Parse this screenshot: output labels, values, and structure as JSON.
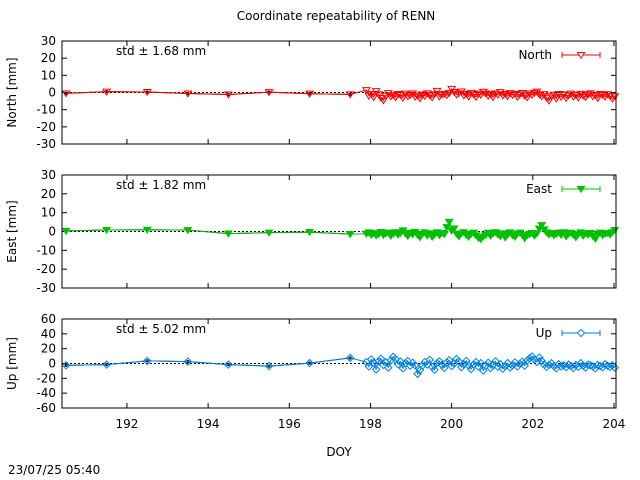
{
  "figure": {
    "title": "Coordinate repeatability of RENN",
    "timestamp": "23/07/25 05:40"
  },
  "chart_data": [
    {
      "type": "line",
      "panel": "north",
      "title": "Coordinate repeatability of RENN",
      "ylabel": "North [mm]",
      "xlabel": "",
      "xlim": [
        190.4,
        204.05
      ],
      "ylim": [
        -30,
        30
      ],
      "yticks": [
        "30",
        "20",
        "10",
        "0",
        "-10",
        "-20",
        "-30"
      ],
      "std_text": "std ± 1.68 mm",
      "color": "#ff0000",
      "marker": "triangle-down-open",
      "legend": "top-right",
      "series": [
        {
          "name": "North",
          "x": [
            190.5,
            191.5,
            192.5,
            193.5,
            194.5,
            195.5,
            196.5,
            197.5,
            197.9,
            197.96,
            198.02,
            198.08,
            198.14,
            198.2,
            198.26,
            198.32,
            198.38,
            198.44,
            198.5,
            198.56,
            198.62,
            198.68,
            198.74,
            198.8,
            198.86,
            198.92,
            198.98,
            199.04,
            199.1,
            199.16,
            199.22,
            199.28,
            199.34,
            199.4,
            199.46,
            199.52,
            199.58,
            199.64,
            199.7,
            199.76,
            199.82,
            199.88,
            199.94,
            200.0,
            200.06,
            200.12,
            200.18,
            200.24,
            200.3,
            200.36,
            200.42,
            200.48,
            200.54,
            200.6,
            200.66,
            200.72,
            200.78,
            200.84,
            200.9,
            200.96,
            201.02,
            201.08,
            201.14,
            201.2,
            201.26,
            201.32,
            201.38,
            201.44,
            201.5,
            201.56,
            201.62,
            201.68,
            201.74,
            201.8,
            201.86,
            201.92,
            201.98,
            202.04,
            202.1,
            202.16,
            202.22,
            202.28,
            202.34,
            202.4,
            202.46,
            202.52,
            202.58,
            202.64,
            202.7,
            202.76,
            202.82,
            202.88,
            202.94,
            203.0,
            203.06,
            203.12,
            203.18,
            203.24,
            203.3,
            203.36,
            203.42,
            203.48,
            203.54,
            203.6,
            203.66,
            203.72,
            203.78,
            203.84,
            203.9,
            203.96,
            204.02
          ],
          "y": [
            -0.5,
            0.5,
            0.3,
            -0.6,
            -1.2,
            0.2,
            -0.7,
            -1.1,
            1.4,
            -1.9,
            -0.8,
            -2.7,
            0.8,
            -1.1,
            -3.2,
            -4.6,
            -1.9,
            -0.4,
            -2.3,
            -1.6,
            -2.8,
            -0.9,
            -1.5,
            -3.1,
            -0.7,
            -2.2,
            -1.4,
            -0.6,
            -2.5,
            -1.8,
            -3.4,
            -1.2,
            -2.1,
            -0.5,
            -1.7,
            -2.9,
            -1.0,
            0.9,
            -2.4,
            -1.3,
            -0.8,
            -1.6,
            -0.4,
            2.1,
            0.3,
            -1.2,
            -0.5,
            0.6,
            -1.8,
            -0.9,
            -2.3,
            -0.2,
            -1.1,
            -2.6,
            -0.7,
            -1.4,
            0.4,
            -0.6,
            -1.9,
            -1.0,
            -2.8,
            -0.5,
            -1.3,
            0.2,
            -1.7,
            -0.9,
            -2.2,
            -0.4,
            -1.5,
            -0.8,
            -2.6,
            -1.1,
            -0.3,
            -1.9,
            -2.9,
            -0.6,
            -1.4,
            -0.2,
            0.5,
            -1.2,
            -2.3,
            -1.0,
            -3.1,
            -4.8,
            -2.2,
            -1.3,
            -3.5,
            -0.9,
            -2.6,
            -1.1,
            -3.2,
            -1.8,
            -0.7,
            -2.4,
            -1.5,
            -3.0,
            -0.8,
            -1.9,
            -2.7,
            -1.2,
            -0.5,
            -2.2,
            -1.6,
            -3.3,
            -0.9,
            -1.4,
            -2.5,
            -1.0,
            -2.1,
            -3.6,
            -2.3
          ]
        }
      ]
    },
    {
      "type": "line",
      "panel": "east",
      "ylabel": "East [mm]",
      "xlabel": "",
      "xlim": [
        190.4,
        204.05
      ],
      "ylim": [
        -30,
        30
      ],
      "yticks": [
        "30",
        "20",
        "10",
        "0",
        "-10",
        "-20",
        "-30"
      ],
      "std_text": "std ± 1.82 mm",
      "color": "#00c000",
      "marker": "triangle-down-filled",
      "legend": "top-right",
      "series": [
        {
          "name": "East",
          "x": [
            190.5,
            191.5,
            192.5,
            193.5,
            194.5,
            195.5,
            196.5,
            197.5,
            197.9,
            197.96,
            198.02,
            198.08,
            198.14,
            198.2,
            198.26,
            198.32,
            198.38,
            198.44,
            198.5,
            198.56,
            198.62,
            198.68,
            198.74,
            198.8,
            198.86,
            198.92,
            198.98,
            199.04,
            199.1,
            199.16,
            199.22,
            199.28,
            199.34,
            199.4,
            199.46,
            199.52,
            199.58,
            199.64,
            199.7,
            199.76,
            199.82,
            199.88,
            199.94,
            200.0,
            200.06,
            200.12,
            200.18,
            200.24,
            200.3,
            200.36,
            200.42,
            200.48,
            200.54,
            200.6,
            200.66,
            200.72,
            200.78,
            200.84,
            200.9,
            200.96,
            201.02,
            201.08,
            201.14,
            201.2,
            201.26,
            201.32,
            201.38,
            201.44,
            201.5,
            201.56,
            201.62,
            201.68,
            201.74,
            201.8,
            201.86,
            201.92,
            201.98,
            202.04,
            202.1,
            202.16,
            202.22,
            202.28,
            202.34,
            202.4,
            202.46,
            202.52,
            202.58,
            202.64,
            202.7,
            202.76,
            202.82,
            202.88,
            202.94,
            203.0,
            203.06,
            203.12,
            203.18,
            203.24,
            203.3,
            203.36,
            203.42,
            203.48,
            203.54,
            203.6,
            203.66,
            203.72,
            203.78,
            203.84,
            203.9,
            203.96,
            204.02
          ],
          "y": [
            0.3,
            0.8,
            0.9,
            0.7,
            -1.1,
            -0.6,
            -0.3,
            -1.4,
            -1.2,
            -0.5,
            -1.8,
            -0.9,
            -2.1,
            -1.5,
            -0.3,
            -1.9,
            -1.0,
            -0.6,
            -2.3,
            -1.2,
            -0.4,
            -1.7,
            -0.8,
            0.6,
            -1.1,
            -2.4,
            -0.7,
            -1.5,
            -0.2,
            -1.8,
            -3.1,
            -1.3,
            -0.5,
            -2.2,
            -1.0,
            -2.9,
            -1.6,
            -0.4,
            -2.0,
            -0.8,
            -1.4,
            2.3,
            5.1,
            0.4,
            1.6,
            -1.2,
            -2.6,
            -1.0,
            -0.4,
            -1.9,
            -2.8,
            -1.3,
            -0.6,
            -2.1,
            -3.4,
            -4.1,
            -2.7,
            -1.8,
            -0.7,
            -2.3,
            -1.1,
            -0.4,
            -1.6,
            -2.5,
            -1.0,
            -3.2,
            -1.7,
            -0.5,
            -2.0,
            -2.9,
            -1.2,
            -0.6,
            -1.8,
            -3.6,
            -2.1,
            -1.4,
            -0.8,
            -2.2,
            -1.0,
            1.5,
            3.4,
            1.1,
            -0.5,
            -1.6,
            -0.9,
            -2.0,
            -1.3,
            -0.6,
            -1.9,
            -0.4,
            -2.6,
            -1.2,
            -0.7,
            -1.8,
            -3.1,
            -1.4,
            -0.5,
            -2.3,
            -1.0,
            -1.7,
            -0.8,
            -2.4,
            -3.9,
            -1.5,
            -0.6,
            -2.0,
            -1.2,
            -0.9,
            -1.6,
            -0.4,
            0.8
          ]
        }
      ]
    },
    {
      "type": "line",
      "panel": "up",
      "ylabel": "Up [mm]",
      "xlabel": "DOY",
      "xlim": [
        190.4,
        204.05
      ],
      "ylim": [
        -60,
        60
      ],
      "xticks": [
        "192",
        "194",
        "196",
        "198",
        "200",
        "202",
        "204"
      ],
      "yticks": [
        "60",
        "40",
        "20",
        "0",
        "-20",
        "-40",
        "-60"
      ],
      "std_text": "std ± 5.02 mm",
      "color": "#0080e0",
      "marker": "diamond-open",
      "legend": "top-right",
      "series": [
        {
          "name": "Up",
          "x": [
            190.5,
            191.5,
            192.5,
            193.5,
            194.5,
            195.5,
            196.5,
            197.5,
            197.9,
            197.96,
            198.02,
            198.08,
            198.14,
            198.2,
            198.26,
            198.32,
            198.38,
            198.44,
            198.5,
            198.56,
            198.62,
            198.68,
            198.74,
            198.8,
            198.86,
            198.92,
            198.98,
            199.04,
            199.1,
            199.16,
            199.22,
            199.28,
            199.34,
            199.4,
            199.46,
            199.52,
            199.58,
            199.64,
            199.7,
            199.76,
            199.82,
            199.88,
            199.94,
            200.0,
            200.06,
            200.12,
            200.18,
            200.24,
            200.3,
            200.36,
            200.42,
            200.48,
            200.54,
            200.6,
            200.66,
            200.72,
            200.78,
            200.84,
            200.9,
            200.96,
            201.02,
            201.08,
            201.14,
            201.2,
            201.26,
            201.32,
            201.38,
            201.44,
            201.5,
            201.56,
            201.62,
            201.68,
            201.74,
            201.8,
            201.86,
            201.92,
            201.98,
            202.04,
            202.1,
            202.16,
            202.22,
            202.28,
            202.34,
            202.4,
            202.46,
            202.52,
            202.58,
            202.64,
            202.7,
            202.76,
            202.82,
            202.88,
            202.94,
            203.0,
            203.06,
            203.12,
            203.18,
            203.24,
            203.3,
            203.36,
            203.42,
            203.48,
            203.54,
            203.6,
            203.66,
            203.72,
            203.78,
            203.84,
            203.9,
            203.96,
            204.02
          ],
          "y": [
            -2.5,
            -1.5,
            3.5,
            2.5,
            -1.5,
            -3.5,
            0.5,
            7.5,
            2.0,
            -4.0,
            5.5,
            1.0,
            -8.0,
            3.0,
            6.5,
            -2.0,
            1.5,
            -5.5,
            4.0,
            9.0,
            6.0,
            -1.0,
            2.5,
            -6.5,
            0.5,
            3.5,
            -3.0,
            1.0,
            -2.5,
            -14.0,
            -9.0,
            -3.0,
            2.0,
            -1.5,
            5.0,
            -4.5,
            -8.5,
            0.5,
            3.0,
            -2.0,
            -6.0,
            1.5,
            4.5,
            -3.5,
            0.0,
            6.0,
            2.5,
            -5.0,
            -1.0,
            3.5,
            -2.5,
            -7.5,
            -1.5,
            2.0,
            -4.0,
            0.5,
            -9.5,
            -3.0,
            1.0,
            -6.0,
            -2.0,
            3.0,
            -4.5,
            -1.0,
            -7.0,
            -3.5,
            0.5,
            -5.5,
            -2.5,
            1.5,
            -4.0,
            -0.5,
            2.5,
            -3.0,
            4.0,
            7.0,
            9.5,
            5.5,
            2.0,
            8.0,
            3.5,
            -1.5,
            -4.5,
            -2.0,
            0.5,
            -3.5,
            -6.5,
            -1.0,
            -4.0,
            -2.5,
            -5.0,
            -1.5,
            -3.5,
            -6.0,
            -2.0,
            -4.5,
            0.5,
            -3.0,
            -5.5,
            -1.5,
            -2.5,
            -4.0,
            -6.5,
            -2.0,
            -3.5,
            -5.0,
            -1.0,
            -3.0,
            -4.5,
            -2.5,
            -5.5
          ]
        }
      ]
    }
  ]
}
